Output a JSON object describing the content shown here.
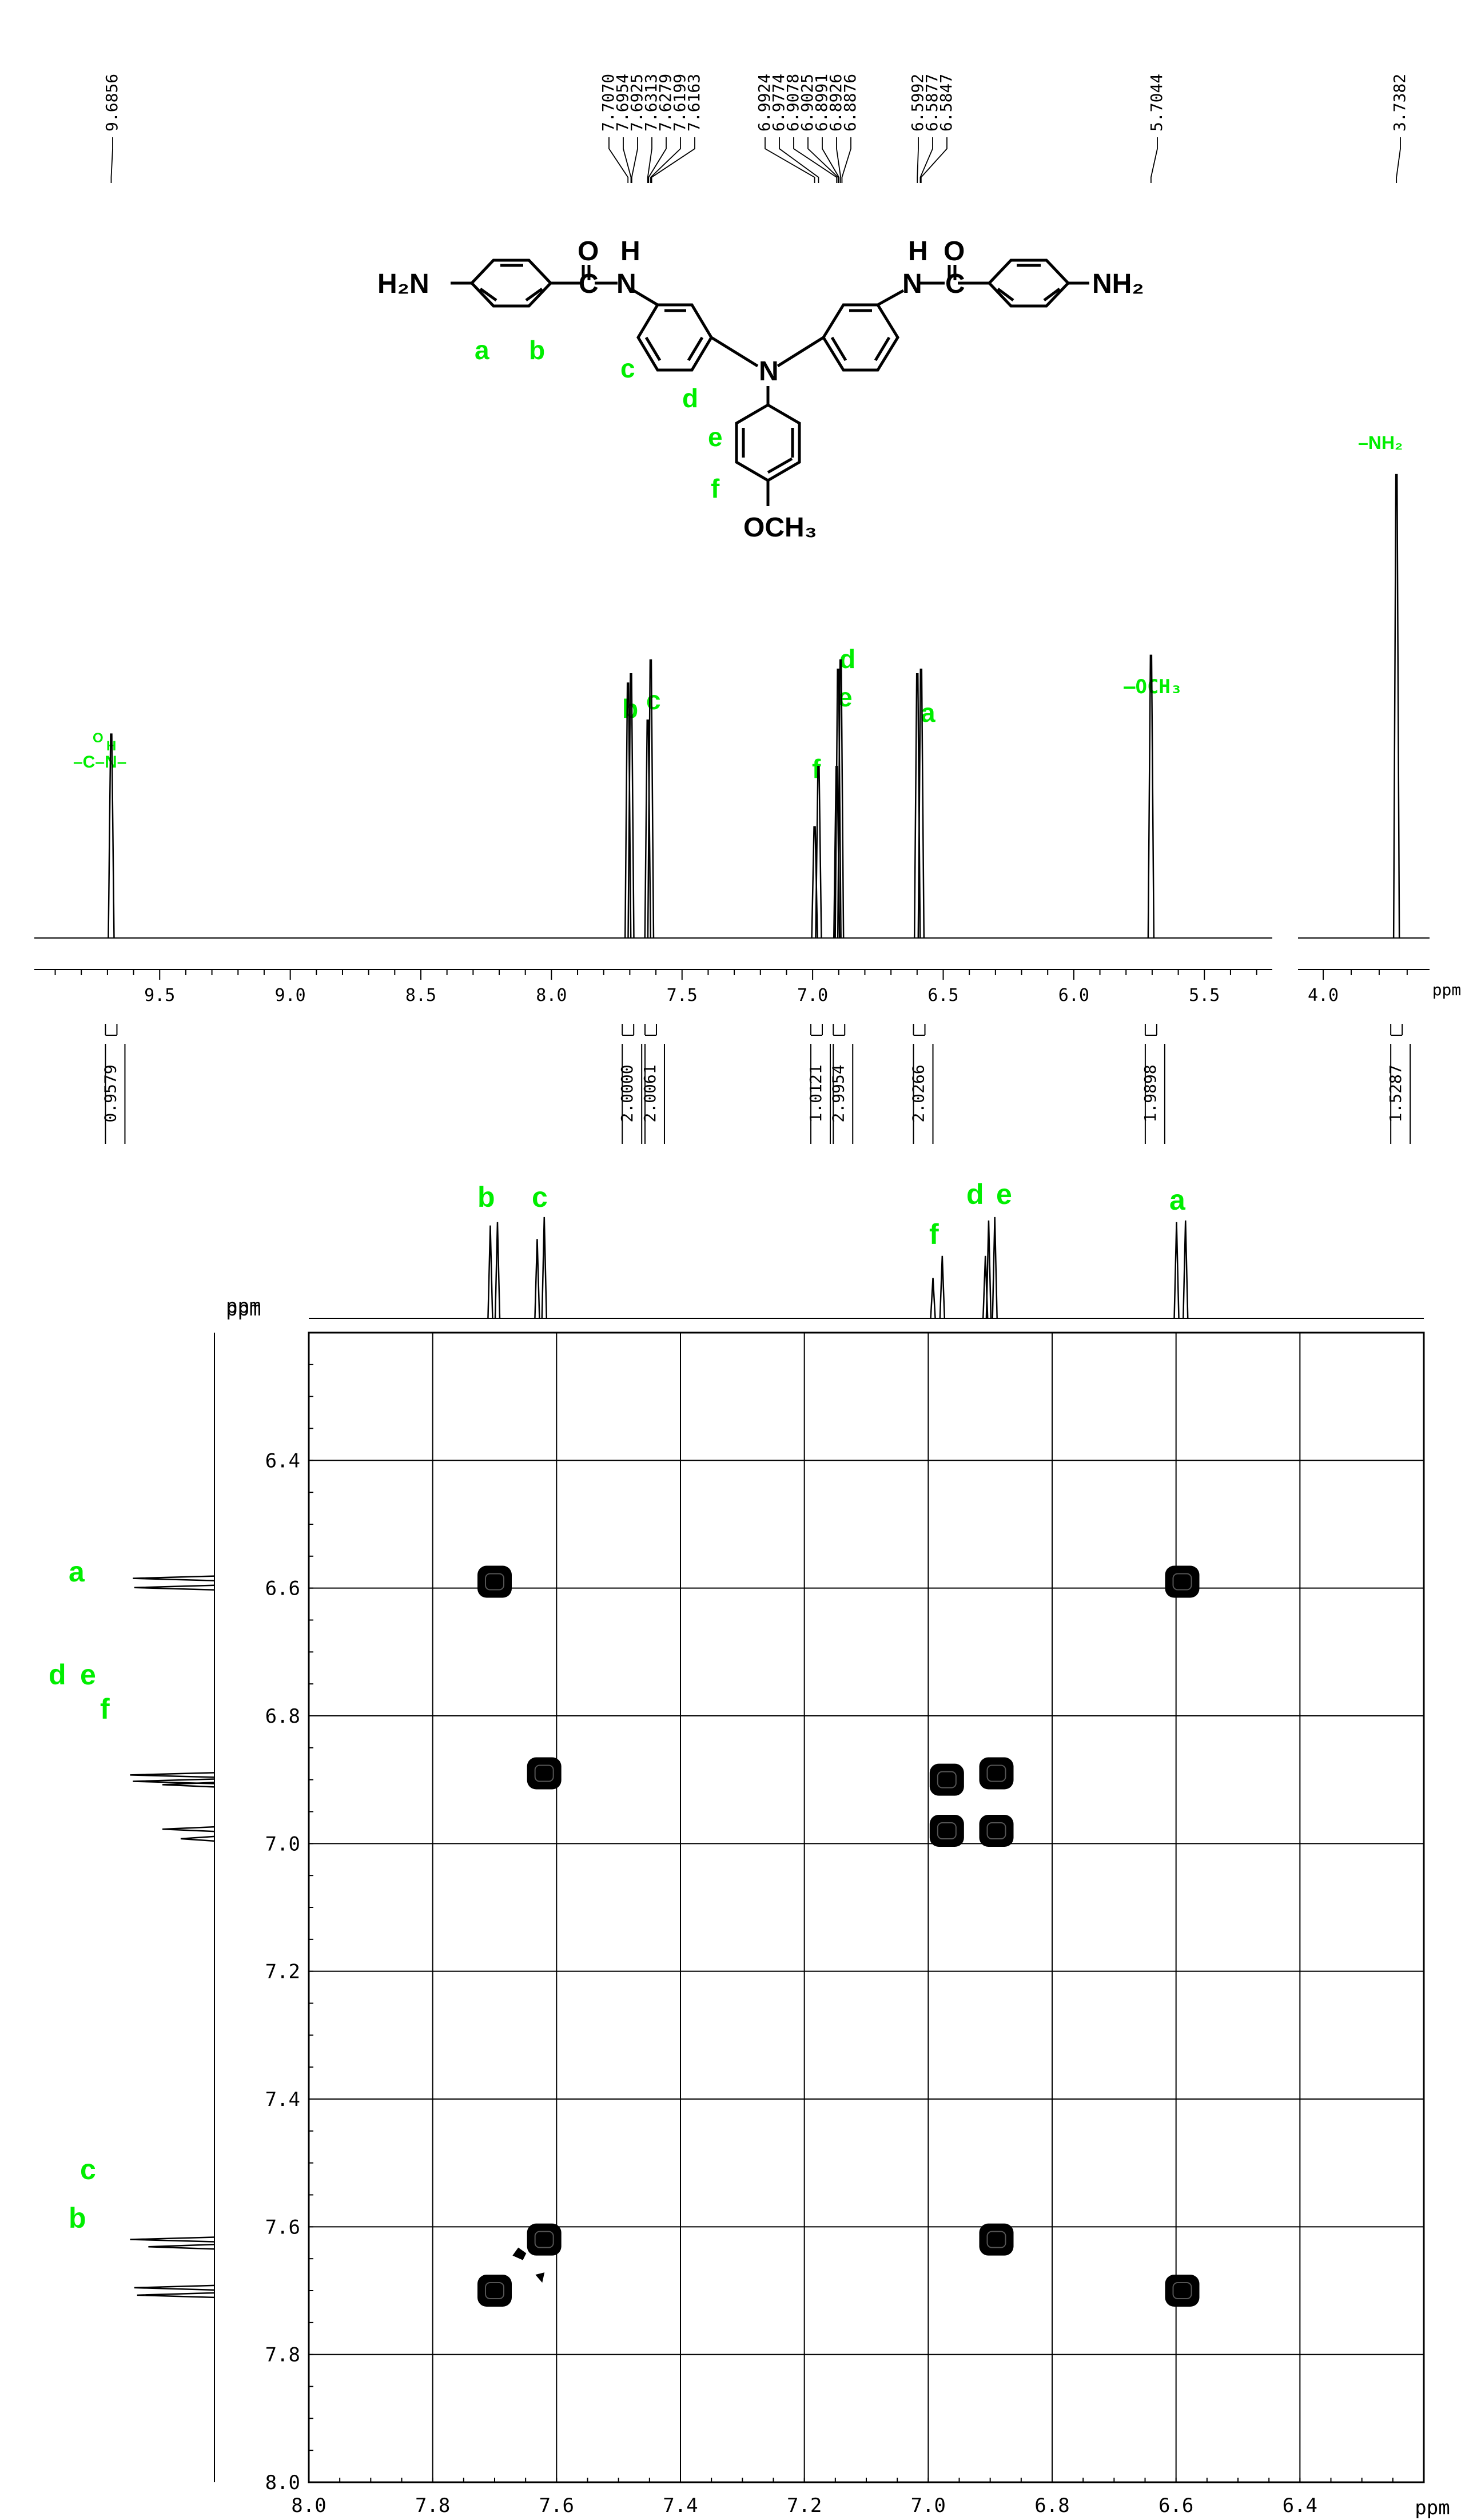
{
  "colors": {
    "annotation": "#00ee00",
    "ink": "#000000",
    "grid": "#000000"
  },
  "top": {
    "peak_labels": [
      "9.6856",
      "7.7070",
      "7.6954",
      "7.6925",
      "7.6313",
      "7.6279",
      "7.6199",
      "7.6163",
      "6.9924",
      "6.9774",
      "6.9078",
      "6.9025",
      "6.8991",
      "6.8926",
      "6.8876",
      "6.5992",
      "6.5877",
      "6.5847",
      "5.7044",
      "3.7382"
    ],
    "integrals": [
      "0.9579",
      "2.0000",
      "2.0061",
      "1.0121",
      "2.9954",
      "2.0266",
      "1.9898",
      "1.5287"
    ],
    "structure": {
      "left_nh2": "H₂N",
      "right_nh2": "NH₂",
      "o": "O",
      "h": "H",
      "n": "N",
      "c_link": "C–N",
      "n_link": "N–C",
      "ring_n": "N",
      "och3": "OCH₃",
      "labels": {
        "a": "a",
        "b": "b",
        "c": "c",
        "d": "d",
        "e": "e",
        "f": "f"
      }
    },
    "annotations": {
      "amide_o": "O",
      "amide_h": "H",
      "amide": "–C–N–",
      "b": "b",
      "c": "c",
      "d": "d",
      "e": "e",
      "f": "f",
      "a": "a",
      "och3": "–OCH₃",
      "nh2": "–NH₂"
    },
    "axis_unit": "ppm"
  },
  "chart_data": [
    {
      "type": "line",
      "title": "",
      "xlabel": "ppm",
      "x_ticks_left": [
        "9.5",
        "9.0",
        "8.5",
        "8.0",
        "7.5",
        "7.0",
        "6.5",
        "6.0",
        "5.5"
      ],
      "x_ticks_right": [
        "4.0"
      ],
      "xlim_left": [
        9.98,
        5.24
      ],
      "xlim_right": [
        4.09,
        3.62
      ],
      "axis_reversed": true,
      "peaks": [
        {
          "ppm": 9.6856,
          "height": 0.44,
          "label": "–C(O)–NH–"
        },
        {
          "ppm": 7.707,
          "height": 0.55,
          "label": "b"
        },
        {
          "ppm": 7.6954,
          "height": 0.57,
          "label": "b"
        },
        {
          "ppm": 7.6313,
          "height": 0.47,
          "label": "c"
        },
        {
          "ppm": 7.6199,
          "height": 0.6,
          "label": "c"
        },
        {
          "ppm": 6.9924,
          "height": 0.24,
          "label": "f"
        },
        {
          "ppm": 6.9774,
          "height": 0.37,
          "label": "f"
        },
        {
          "ppm": 6.9078,
          "height": 0.37,
          "label": "e"
        },
        {
          "ppm": 6.9025,
          "height": 0.58,
          "label": "d"
        },
        {
          "ppm": 6.8926,
          "height": 0.6,
          "label": "d"
        },
        {
          "ppm": 6.5992,
          "height": 0.57,
          "label": "a"
        },
        {
          "ppm": 6.5847,
          "height": 0.58,
          "label": "a"
        },
        {
          "ppm": 5.7044,
          "height": 0.61,
          "label": "–OCH₃"
        },
        {
          "ppm": 3.7382,
          "height": 1.0,
          "label": "–NH₂"
        }
      ],
      "integrals": [
        {
          "ppm": 9.6856,
          "value": 0.9579
        },
        {
          "ppm": 7.707,
          "value": 2.0
        },
        {
          "ppm": 7.6199,
          "value": 2.0061
        },
        {
          "ppm": 6.9849,
          "value": 1.0121
        },
        {
          "ppm": 6.899,
          "value": 2.9954
        },
        {
          "ppm": 6.5919,
          "value": 2.0266
        },
        {
          "ppm": 5.7044,
          "value": 1.9898
        },
        {
          "ppm": 3.7382,
          "value": 1.5287
        }
      ]
    },
    {
      "type": "heatmap",
      "title": "",
      "xlabel": "ppm",
      "ylabel": "ppm",
      "xlim": [
        8.0,
        6.2
      ],
      "ylim": [
        6.2,
        8.0
      ],
      "x_ticks": [
        "8.0",
        "7.8",
        "7.6",
        "7.4",
        "7.2",
        "7.0",
        "6.8",
        "6.6",
        "6.4"
      ],
      "y_ticks": [
        "6.4",
        "6.6",
        "6.8",
        "7.0",
        "7.2",
        "7.4",
        "7.6",
        "7.8",
        "8.0"
      ],
      "grid": true,
      "cross_peaks": [
        {
          "x": 7.7,
          "y": 6.59
        },
        {
          "x": 6.59,
          "y": 6.59
        },
        {
          "x": 7.62,
          "y": 6.89
        },
        {
          "x": 6.97,
          "y": 6.9
        },
        {
          "x": 6.89,
          "y": 6.89
        },
        {
          "x": 6.97,
          "y": 6.98
        },
        {
          "x": 6.89,
          "y": 6.98
        },
        {
          "x": 7.62,
          "y": 7.62
        },
        {
          "x": 6.89,
          "y": 7.62
        },
        {
          "x": 7.7,
          "y": 7.7
        },
        {
          "x": 6.59,
          "y": 7.7
        }
      ],
      "top_projection_labels": [
        "b",
        "c",
        "f",
        "d",
        "e",
        "a"
      ],
      "side_projection_labels": [
        "a",
        "d",
        "e",
        "f",
        "c",
        "b"
      ]
    }
  ]
}
